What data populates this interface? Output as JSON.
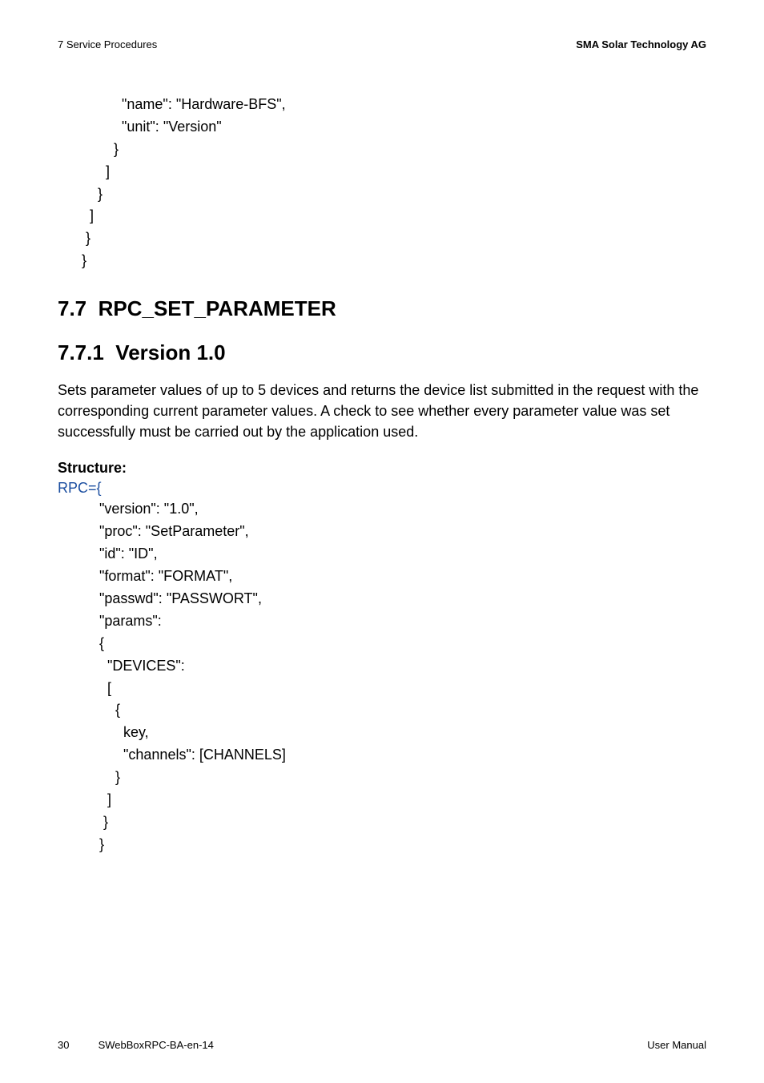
{
  "header": {
    "left": "7  Service Procedures",
    "right": "SMA Solar Technology AG"
  },
  "topCode": "          \"name\": \"Hardware-BFS\",\n          \"unit\": \"Version\"\n        }\n      ]\n    }\n  ]\n }\n}",
  "section": {
    "number": "7.7",
    "title": "RPC_SET_PARAMETER"
  },
  "subsection": {
    "number": "7.7.1",
    "title": "Version 1.0"
  },
  "paragraph": "Sets parameter values of up to 5 devices and returns the device list submitted in the request with the corresponding current parameter values. A check to see whether every parameter value was set successfully must be carried out by the application used.",
  "structureLabel": "Structure:",
  "rpcLine": "RPC={",
  "structCode": "\"version\": \"1.0\",\n\"proc\": \"SetParameter\",\n\"id\": \"ID\",\n\"format\": \"FORMAT\",\n\"passwd\": \"PASSWORT\",\n\"params\":\n{\n  \"DEVICES\":\n  [\n    {\n      key,\n      \"channels\": [CHANNELS]\n    }\n  ]\n }\n}",
  "footer": {
    "pageNum": "30",
    "docId": "SWebBoxRPC-BA-en-14",
    "right": "User Manual"
  },
  "styles": {
    "background": "#ffffff",
    "text_color": "#000000",
    "link_color": "#1b4ea0",
    "body_fontsize": 18,
    "heading_fontsize": 26,
    "header_fontsize": 13,
    "footer_fontsize": 13
  }
}
